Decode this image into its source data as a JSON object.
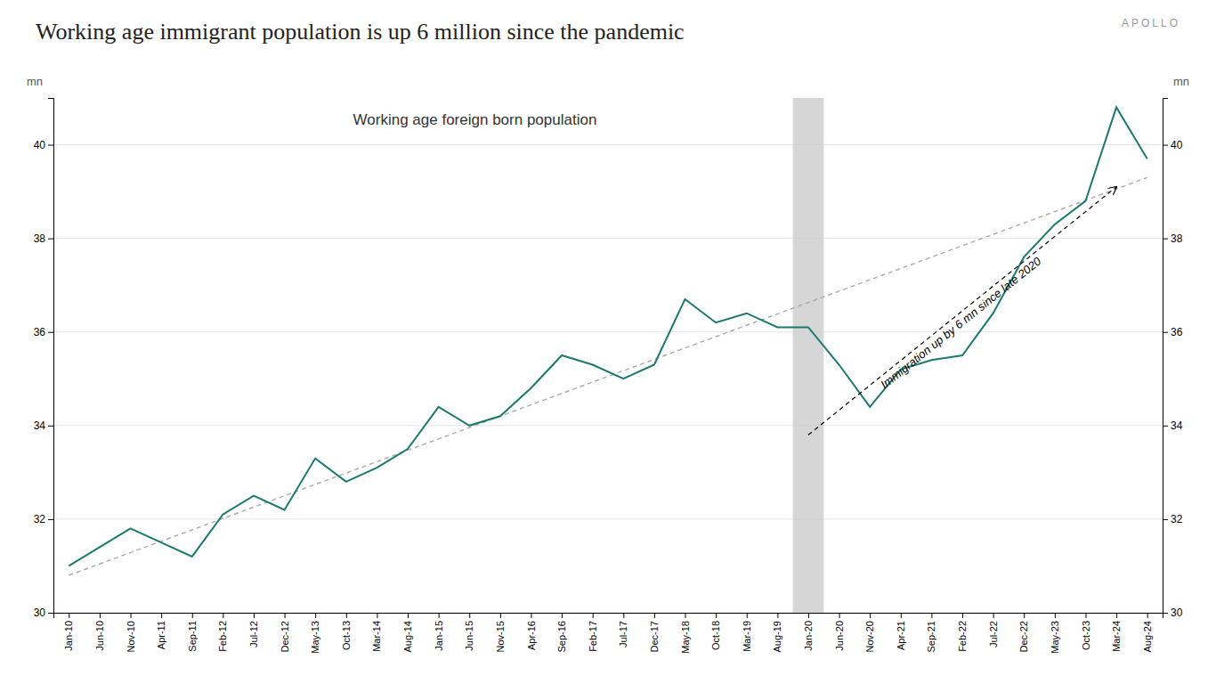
{
  "chart_data": {
    "type": "line",
    "title": "Working age immigrant population is up 6 million since the pandemic",
    "watermark": "APOLLO",
    "ylabel": "mn",
    "y2label": "mn",
    "categories": [
      "Jan-10",
      "Jun-10",
      "Nov-10",
      "Apr-11",
      "Sep-11",
      "Feb-12",
      "Jul-12",
      "Dec-12",
      "May-13",
      "Oct-13",
      "Mar-14",
      "Aug-14",
      "Jan-15",
      "Jun-15",
      "Nov-15",
      "Apr-16",
      "Sep-16",
      "Feb-17",
      "Jul-17",
      "Dec-17",
      "May-18",
      "Oct-18",
      "Mar-19",
      "Aug-19",
      "Jan-20",
      "Jun-20",
      "Nov-20",
      "Apr-21",
      "Sep-21",
      "Feb-22",
      "Jul-22",
      "Dec-22",
      "May-23",
      "Oct-23",
      "Mar-24",
      "Aug-24"
    ],
    "series": [
      {
        "name": "Working age foreign born population",
        "color": "#1a7a6e",
        "values": [
          31.0,
          31.4,
          31.8,
          31.5,
          31.2,
          32.1,
          32.5,
          32.2,
          33.3,
          32.8,
          33.1,
          33.5,
          34.4,
          34.0,
          34.2,
          34.8,
          35.5,
          35.3,
          35.0,
          35.3,
          36.7,
          36.2,
          36.4,
          36.1,
          36.1,
          35.3,
          34.4,
          35.2,
          35.4,
          35.5,
          36.4,
          37.6,
          38.3,
          38.8,
          40.8,
          39.7
        ]
      }
    ],
    "ylim": [
      30,
      41
    ],
    "yticks": [
      30,
      32,
      34,
      36,
      38,
      40
    ],
    "y2lim": [
      30,
      41
    ],
    "y2ticks": [
      30,
      32,
      34,
      36,
      38,
      40
    ],
    "grid": true,
    "shading": {
      "x": "Jan-20",
      "color": "#cccccc"
    },
    "trend": {
      "categories": [
        "Jan-10",
        "Aug-24"
      ],
      "values": [
        30.8,
        39.3
      ],
      "color": "#aaaaaa",
      "line_style": "dashed"
    },
    "arrow": {
      "text": "Immigration up by 6 mn since late 2020",
      "from": {
        "x": "Jan-20",
        "y": 33.8
      },
      "to": {
        "x": "Mar-24",
        "y": 39.1
      },
      "line_style": "dashed"
    }
  }
}
